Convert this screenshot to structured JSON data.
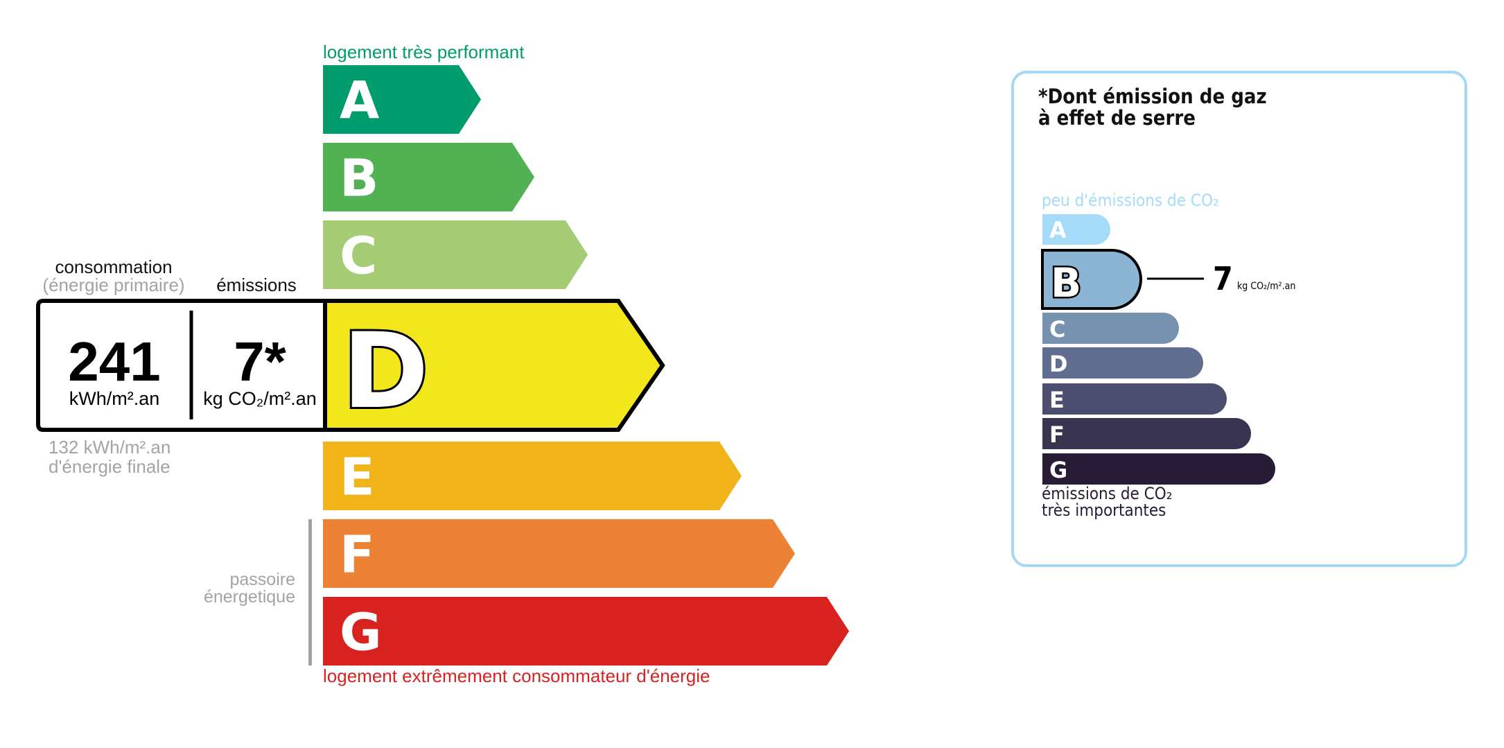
{
  "energy": {
    "top_label": "logement très performant",
    "bottom_label": "logement extrêmement consommateur d'énergie",
    "classes": [
      {
        "letter": "A",
        "color": "#009c6d"
      },
      {
        "letter": "B",
        "color": "#52b153"
      },
      {
        "letter": "C",
        "color": "#a5cc74"
      },
      {
        "letter": "D",
        "color": "#f2e71c"
      },
      {
        "letter": "E",
        "color": "#f0b41a"
      },
      {
        "letter": "F",
        "color": "#eb8235"
      },
      {
        "letter": "G",
        "color": "#d7221f"
      }
    ],
    "current_class": "D",
    "consumption_header": "consommation",
    "consumption_subheader": "(énergie primaire)",
    "emissions_header": "émissions",
    "consumption_value": "241",
    "consumption_unit": "kWh/m².an",
    "emissions_value": "7*",
    "emissions_unit": "kg CO₂/m².an",
    "final_energy_value": "132 kWh/m².an",
    "final_energy_label": "d'énergie finale",
    "passoire_line1": "passoire",
    "passoire_line2": "énergetique"
  },
  "ges": {
    "title_line1": "*Dont émission de gaz",
    "title_line2": "à effet de serre",
    "top_label": "peu d'émissions de CO₂",
    "bottom_label_line1": "émissions de CO₂",
    "bottom_label_line2": "très importantes",
    "classes": [
      {
        "letter": "A",
        "color": "#a4dbf8"
      },
      {
        "letter": "B",
        "color": "#8cb4d3"
      },
      {
        "letter": "C",
        "color": "#7792b1"
      },
      {
        "letter": "D",
        "color": "#606f8f"
      },
      {
        "letter": "E",
        "color": "#4d4e6f"
      },
      {
        "letter": "F",
        "color": "#393551"
      },
      {
        "letter": "G",
        "color": "#281b35"
      }
    ],
    "current_class": "B",
    "value": "7",
    "unit": "kg CO₂/m².an"
  }
}
